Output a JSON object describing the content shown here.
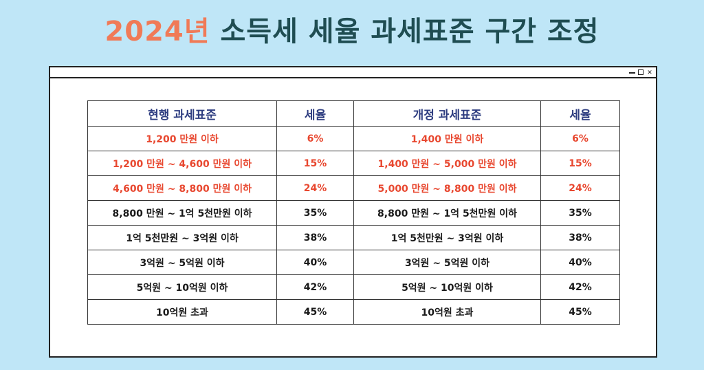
{
  "title": {
    "year": "2024년",
    "rest": " 소득세 세율 과세표준 구간 조정"
  },
  "window": {
    "controls": [
      "minimize",
      "maximize",
      "close"
    ],
    "close_glyph": "✕"
  },
  "colors": {
    "background": "#bfe6f7",
    "title_accent": "#f07a57",
    "title_text": "#1f4d52",
    "header_text": "#2e3d80",
    "highlight_text": "#e8472f"
  },
  "table": {
    "headers": [
      "현행 과세표준",
      "세율",
      "개정 과세표준",
      "세율"
    ],
    "rows": [
      {
        "highlight": true,
        "cells": [
          "1,200 만원 이하",
          "6%",
          "1,400 만원 이하",
          "6%"
        ]
      },
      {
        "highlight": true,
        "cells": [
          "1,200 만원 ~ 4,600 만원 이하",
          "15%",
          "1,400 만원 ~ 5,000 만원 이하",
          "15%"
        ]
      },
      {
        "highlight": true,
        "cells": [
          "4,600 만원 ~ 8,800 만원 이하",
          "24%",
          "5,000 만원 ~ 8,800 만원 이하",
          "24%"
        ]
      },
      {
        "highlight": false,
        "cells": [
          "8,800 만원 ~ 1억 5천만원 이하",
          "35%",
          "8,800 만원 ~ 1억 5천만원 이하",
          "35%"
        ]
      },
      {
        "highlight": false,
        "cells": [
          "1억 5천만원 ~ 3억원 이하",
          "38%",
          "1억 5천만원 ~ 3억원 이하",
          "38%"
        ]
      },
      {
        "highlight": false,
        "cells": [
          "3억원 ~ 5억원 이하",
          "40%",
          "3억원 ~ 5억원 이하",
          "40%"
        ]
      },
      {
        "highlight": false,
        "cells": [
          "5억원 ~ 10억원 이하",
          "42%",
          "5억원 ~ 10억원 이하",
          "42%"
        ]
      },
      {
        "highlight": false,
        "cells": [
          "10억원 초과",
          "45%",
          "10억원 초과",
          "45%"
        ]
      }
    ]
  }
}
